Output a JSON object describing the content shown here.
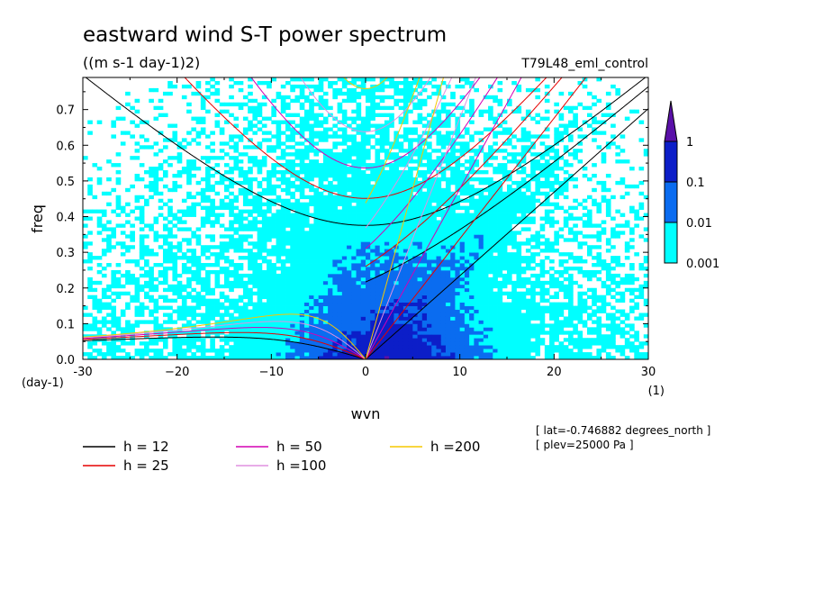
{
  "chart_data": {
    "type": "heatmap",
    "title": "eastward wind S-T power spectrum",
    "subtitle": "((m s-1 day-1)2)",
    "run_label": "T79L48_eml_control",
    "xlabel": "wvn",
    "ylabel": "freq",
    "x_units": "(1)",
    "y_units": "(day-1)",
    "xlim": [
      -30,
      30
    ],
    "ylim": [
      0,
      0.79
    ],
    "x_ticks": [
      -30,
      -20,
      -10,
      0,
      10,
      20,
      30
    ],
    "x_tick_labels": [
      "-30",
      "−20",
      "−10",
      "0",
      "10",
      "20",
      "30"
    ],
    "y_ticks": [
      0,
      0.1,
      0.2,
      0.3,
      0.4,
      0.5,
      0.6,
      0.7
    ],
    "y_tick_labels": [
      "0.0",
      "0.1",
      "0.2",
      "0.3",
      "0.4",
      "0.5",
      "0.6",
      "0.7"
    ],
    "colorbar": {
      "levels": [
        0.001,
        0.01,
        0.1,
        1
      ],
      "labels": [
        "0.001",
        "0.01",
        "0.1",
        "1"
      ],
      "colors": [
        "#00ffff",
        "#0a6cf0",
        "#0c1ec8",
        "#5a10a8"
      ]
    },
    "dispersion_curves": [
      {
        "name": "h = 12",
        "h": 12,
        "color": "#000000"
      },
      {
        "name": "h = 25",
        "h": 25,
        "color": "#e60000"
      },
      {
        "name": "h = 50",
        "h": 50,
        "color": "#d400b4"
      },
      {
        "name": "h =100",
        "h": 100,
        "color": "#e090e0"
      },
      {
        "name": "h =200",
        "h": 200,
        "color": "#f5c800"
      }
    ],
    "annotations": [
      "[ lat=-0.746882 degrees_north ]",
      "[ plev=25000 Pa ]"
    ]
  }
}
